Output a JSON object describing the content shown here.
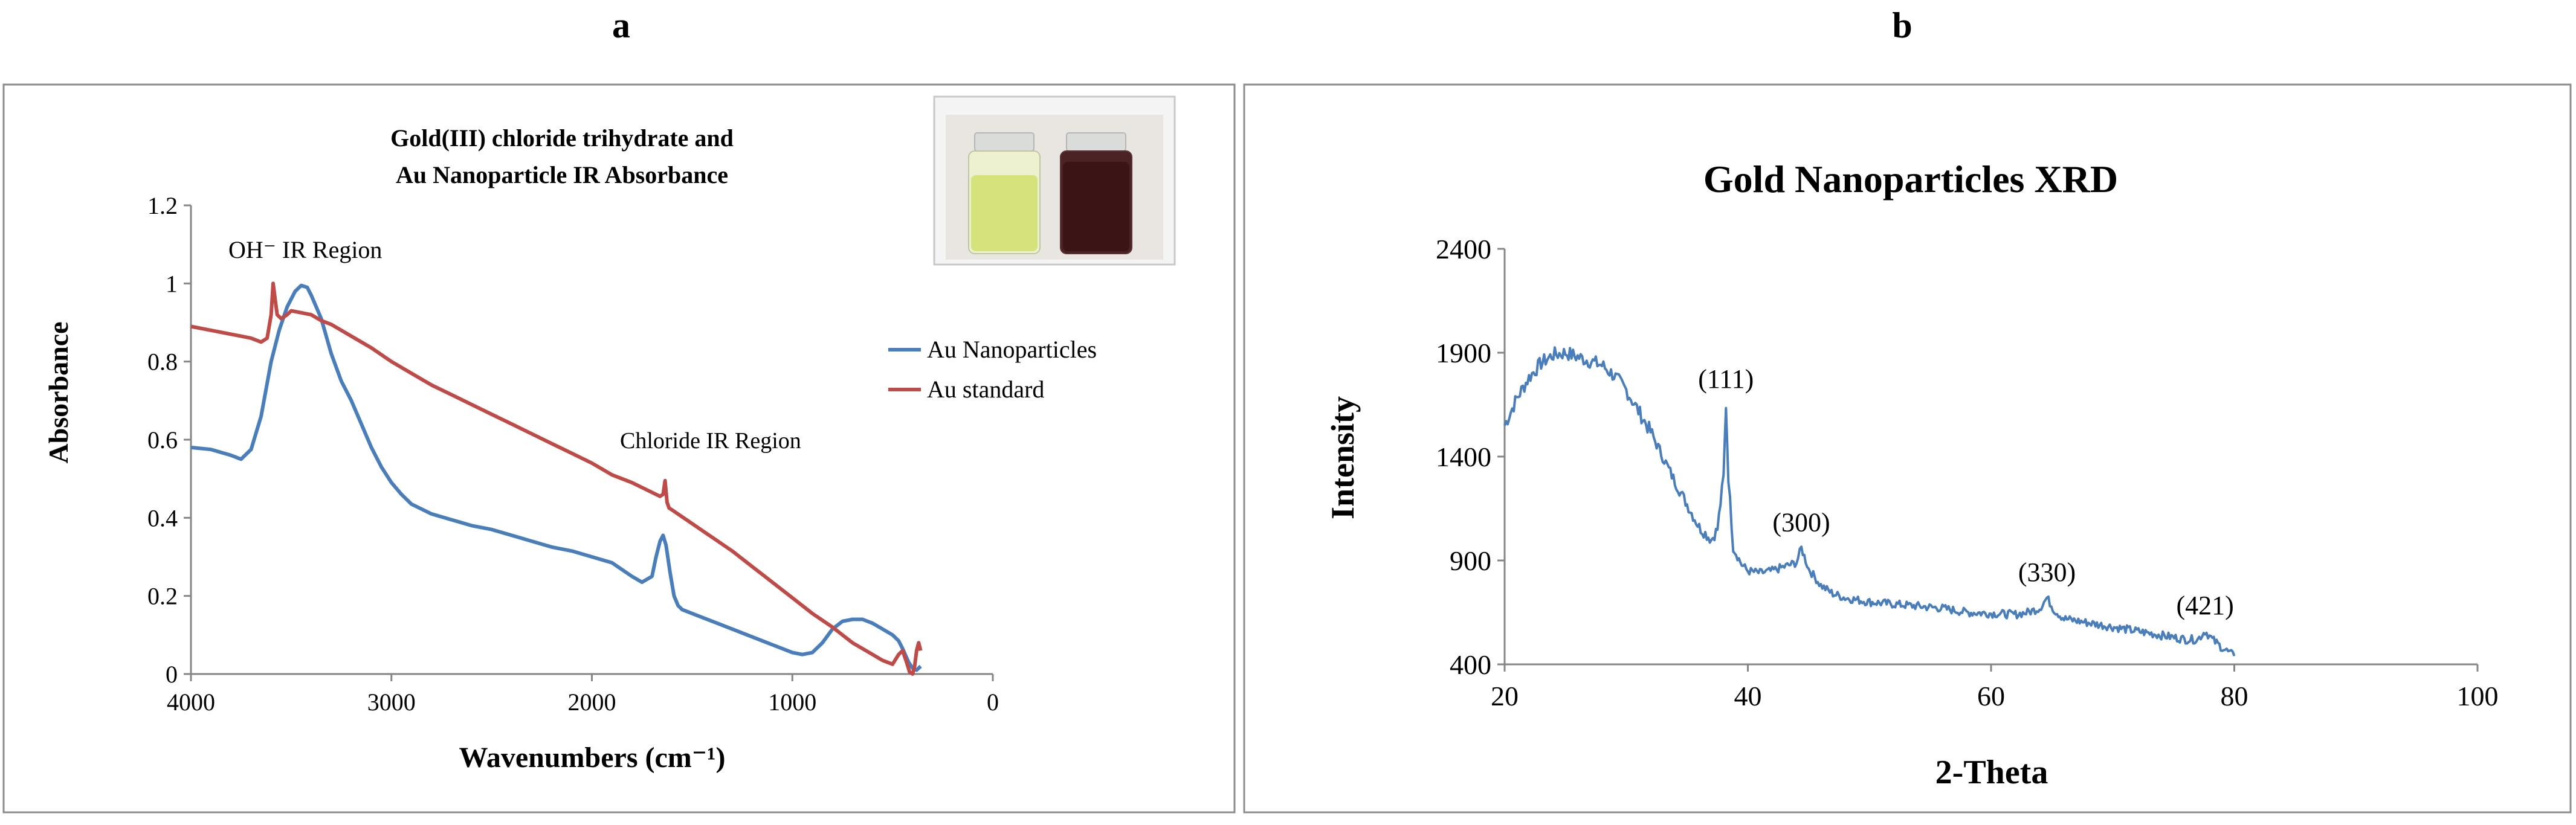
{
  "panel_labels": {
    "a": "a",
    "b": "b"
  },
  "colors": {
    "nanoparticles": "#4a7ebb",
    "standard": "#be4b48",
    "xrd": "#4a7ebb",
    "frame": "#8c8c8c",
    "axis": "#868686"
  },
  "inset_photo": {
    "icon": "vial-photo-icon",
    "left_vial_color": "#d6e27a",
    "right_vial_color": "#3b1416"
  },
  "chart_data": [
    {
      "type": "line",
      "title": "Gold(III)  chloride trihydrate and Au Nanoparticle IR Absorbance",
      "title_lines": [
        "Gold(III)  chloride trihydrate and",
        "Au Nanoparticle IR Absorbance"
      ],
      "xlabel": "Wavenumbers (cm⁻¹)",
      "ylabel": "Absorbance",
      "xlim": [
        4000,
        0
      ],
      "ylim": [
        0,
        1.2
      ],
      "x_ticks": [
        "4000",
        "3000",
        "2000",
        "1000",
        "0"
      ],
      "y_ticks": [
        "0",
        "0.2",
        "0.4",
        "0.6",
        "0.8",
        "1",
        "1.2"
      ],
      "legend": [
        "Au Nanoparticles",
        "Au standard"
      ],
      "annotations": [
        "OH⁻ IR Region",
        "Chloride IR Region"
      ],
      "series": [
        {
          "name": "Au Nanoparticles",
          "color": "#4a7ebb",
          "x": [
            4000,
            3900,
            3800,
            3750,
            3700,
            3650,
            3600,
            3560,
            3520,
            3480,
            3450,
            3420,
            3400,
            3350,
            3300,
            3250,
            3200,
            3150,
            3100,
            3050,
            3000,
            2950,
            2900,
            2800,
            2700,
            2600,
            2500,
            2400,
            2300,
            2200,
            2100,
            2000,
            1900,
            1800,
            1750,
            1700,
            1680,
            1660,
            1645,
            1630,
            1610,
            1590,
            1570,
            1550,
            1500,
            1400,
            1300,
            1200,
            1100,
            1000,
            950,
            900,
            850,
            800,
            750,
            700,
            650,
            600,
            550,
            500,
            470,
            450,
            420,
            400,
            380,
            360
          ],
          "y": [
            0.58,
            0.575,
            0.56,
            0.55,
            0.575,
            0.66,
            0.8,
            0.88,
            0.94,
            0.98,
            0.995,
            0.99,
            0.97,
            0.91,
            0.82,
            0.75,
            0.7,
            0.64,
            0.58,
            0.53,
            0.49,
            0.46,
            0.435,
            0.41,
            0.395,
            0.38,
            0.37,
            0.355,
            0.34,
            0.325,
            0.315,
            0.3,
            0.285,
            0.25,
            0.235,
            0.25,
            0.3,
            0.34,
            0.355,
            0.33,
            0.26,
            0.2,
            0.175,
            0.165,
            0.155,
            0.135,
            0.115,
            0.095,
            0.075,
            0.055,
            0.05,
            0.055,
            0.08,
            0.115,
            0.135,
            0.14,
            0.14,
            0.13,
            0.115,
            0.1,
            0.085,
            0.065,
            0.03,
            0.015,
            0.01,
            0.02
          ]
        },
        {
          "name": "Au standard",
          "color": "#be4b48",
          "x": [
            4000,
            3900,
            3800,
            3750,
            3700,
            3650,
            3620,
            3600,
            3590,
            3580,
            3570,
            3550,
            3520,
            3500,
            3450,
            3400,
            3350,
            3300,
            3200,
            3100,
            3000,
            2900,
            2800,
            2700,
            2600,
            2500,
            2400,
            2300,
            2200,
            2100,
            2000,
            1900,
            1800,
            1700,
            1660,
            1645,
            1635,
            1625,
            1615,
            1600,
            1500,
            1400,
            1300,
            1200,
            1100,
            1000,
            900,
            800,
            700,
            600,
            550,
            500,
            470,
            450,
            430,
            415,
            400,
            390,
            380,
            370,
            360
          ],
          "y": [
            0.89,
            0.88,
            0.87,
            0.865,
            0.86,
            0.85,
            0.86,
            0.92,
            1.0,
            0.96,
            0.92,
            0.91,
            0.92,
            0.93,
            0.925,
            0.92,
            0.905,
            0.895,
            0.865,
            0.835,
            0.8,
            0.77,
            0.74,
            0.715,
            0.69,
            0.665,
            0.64,
            0.615,
            0.59,
            0.565,
            0.54,
            0.51,
            0.49,
            0.465,
            0.455,
            0.46,
            0.495,
            0.44,
            0.425,
            0.42,
            0.385,
            0.35,
            0.315,
            0.275,
            0.235,
            0.195,
            0.155,
            0.12,
            0.08,
            0.05,
            0.035,
            0.025,
            0.05,
            0.06,
            0.03,
            0.005,
            0.0,
            0.02,
            0.06,
            0.08,
            0.06
          ]
        }
      ]
    },
    {
      "type": "line",
      "title": "Gold Nanoparticles XRD",
      "xlabel": "2-Theta",
      "ylabel": "Intensity",
      "xlim": [
        20,
        100
      ],
      "ylim": [
        400,
        2400
      ],
      "x_ticks": [
        "20",
        "40",
        "60",
        "80",
        "100"
      ],
      "y_ticks": [
        "400",
        "900",
        "1400",
        "1900",
        "2400"
      ],
      "peak_labels": [
        {
          "label": "(111)",
          "x": 38.2,
          "y": 1650
        },
        {
          "label": "(300)",
          "x": 44.4,
          "y": 960
        },
        {
          "label": "(330)",
          "x": 64.6,
          "y": 720
        },
        {
          "label": "(421)",
          "x": 77.6,
          "y": 560
        }
      ],
      "series": [
        {
          "name": "XRD",
          "color": "#4a7ebb",
          "x": [
            20,
            21,
            22,
            23,
            24,
            25,
            26,
            27,
            28,
            29,
            30,
            31,
            32,
            33,
            34,
            35,
            36,
            37,
            37.5,
            38,
            38.2,
            38.4,
            38.8,
            39.5,
            40,
            41,
            42,
            43,
            44,
            44.4,
            45,
            46,
            47,
            48,
            50,
            52,
            54,
            56,
            57,
            58,
            60,
            62,
            63,
            64,
            64.6,
            65.2,
            66,
            68,
            70,
            72,
            74,
            76,
            77,
            77.6,
            78.2,
            79,
            80
          ],
          "y": [
            1550,
            1680,
            1780,
            1850,
            1890,
            1900,
            1880,
            1860,
            1840,
            1790,
            1720,
            1620,
            1520,
            1400,
            1280,
            1170,
            1060,
            1000,
            1050,
            1300,
            1650,
            1300,
            960,
            880,
            850,
            840,
            850,
            870,
            890,
            960,
            860,
            780,
            740,
            720,
            700,
            690,
            680,
            670,
            660,
            650,
            645,
            640,
            650,
            670,
            720,
            660,
            620,
            600,
            580,
            560,
            540,
            520,
            520,
            560,
            520,
            480,
            440
          ]
        }
      ]
    }
  ]
}
